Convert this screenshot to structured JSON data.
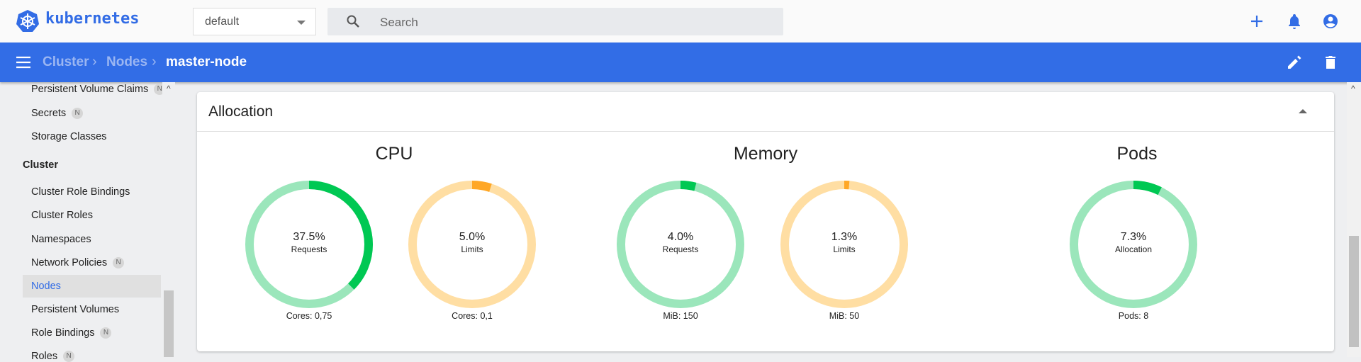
{
  "header": {
    "brand": "kubernetes",
    "namespace": "default",
    "search_placeholder": "Search"
  },
  "breadcrumb": {
    "items": [
      "Cluster",
      "Nodes"
    ],
    "current": "master-node"
  },
  "sidebar": {
    "items": [
      {
        "label": "Persistent Volume Claims",
        "badge": "N"
      },
      {
        "label": "Secrets",
        "badge": "N"
      },
      {
        "label": "Storage Classes"
      }
    ],
    "section": "Cluster",
    "cluster_items": [
      {
        "label": "Cluster Role Bindings"
      },
      {
        "label": "Cluster Roles"
      },
      {
        "label": "Namespaces"
      },
      {
        "label": "Network Policies",
        "badge": "N"
      },
      {
        "label": "Nodes",
        "active": true
      },
      {
        "label": "Persistent Volumes"
      },
      {
        "label": "Role Bindings",
        "badge": "N"
      },
      {
        "label": "Roles",
        "badge": "N"
      }
    ]
  },
  "allocation": {
    "title": "Allocation",
    "sections": [
      "CPU",
      "Memory",
      "Pods"
    ],
    "gauges": [
      {
        "value": 37.5,
        "text": "37.5%",
        "label": "Requests",
        "caption": "Cores: 0,75",
        "kind": "requests"
      },
      {
        "value": 5.0,
        "text": "5.0%",
        "label": "Limits",
        "caption": "Cores: 0,1",
        "kind": "limits"
      },
      {
        "value": 4.0,
        "text": "4.0%",
        "label": "Requests",
        "caption": "MiB: 150",
        "kind": "requests"
      },
      {
        "value": 1.3,
        "text": "1.3%",
        "label": "Limits",
        "caption": "MiB: 50",
        "kind": "limits"
      },
      {
        "value": 7.3,
        "text": "7.3%",
        "label": "Allocation",
        "caption": "Pods: 8",
        "kind": "requests"
      }
    ]
  },
  "colors": {
    "brand": "#326ce5",
    "requests": "#00c853",
    "requests_track": "#9be6bb",
    "limits": "#ffa726",
    "limits_track": "#ffdea3"
  }
}
